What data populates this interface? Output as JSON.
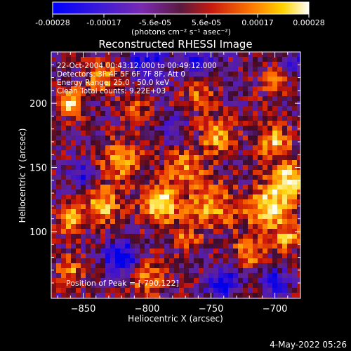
{
  "colorbar": {
    "tick_labels": [
      "-0.00028",
      "-0.00017",
      "-5.6e-05",
      "5.6e-05",
      "0.00017",
      "0.00028"
    ],
    "unit_label": "(photons cm⁻² s⁻¹ asec⁻²)"
  },
  "chart_data": {
    "type": "heatmap",
    "title": "Reconstructed RHESSI Image",
    "xlabel": "Heliocentric X (arcsec)",
    "ylabel": "Heliocentric Y (arcsec)",
    "xlim": [
      -875,
      -680
    ],
    "ylim": [
      48,
      240
    ],
    "x_ticks": [
      -850,
      -800,
      -750,
      -700
    ],
    "y_ticks": [
      100,
      150,
      200
    ],
    "x_tick_labels": [
      "−850",
      "−800",
      "−750",
      "−700"
    ],
    "y_tick_labels": [
      "100",
      "150",
      "200"
    ],
    "value_range": [
      -0.00028,
      0.00028
    ],
    "colormap": "blue-purple-red-yellow-white",
    "peak": [
      -790,
      122
    ],
    "annotations": [
      "22-Oct-2004 00:43:12.000 to 00:49:12.000",
      "Detectors: 3F 4F 5F 6F 7F 8F, Att 0",
      "Energy Range: 25.0 - 50.0 keV",
      "Clean     Total counts: 9.22E+03"
    ],
    "peak_label": "Position of Peak = [-790,122]"
  },
  "footer": {
    "date_label": "4-May-2022 05:26"
  }
}
